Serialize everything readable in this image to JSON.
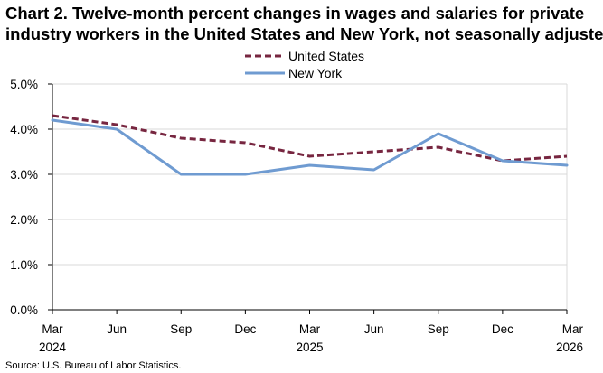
{
  "chart_data": {
    "type": "line",
    "title_lines": [
      "Chart 2. Twelve-month percent changes in wages and salaries for private",
      "industry workers in the United States and New York, not seasonally adjusted"
    ],
    "x": [
      "Mar 2024",
      "Jun 2024",
      "Sep 2024",
      "Dec 2024",
      "Mar 2025",
      "Jun 2025",
      "Sep 2025",
      "Dec 2025",
      "Mar 2026"
    ],
    "x_tick_labels": [
      {
        "month": "Mar",
        "year": "2024"
      },
      {
        "month": "Jun",
        "year": ""
      },
      {
        "month": "Sep",
        "year": ""
      },
      {
        "month": "Dec",
        "year": ""
      },
      {
        "month": "Mar",
        "year": "2025"
      },
      {
        "month": "Jun",
        "year": ""
      },
      {
        "month": "Sep",
        "year": ""
      },
      {
        "month": "Dec",
        "year": ""
      },
      {
        "month": "Mar",
        "year": "2026"
      }
    ],
    "y_ticks": [
      0,
      1,
      2,
      3,
      4,
      5
    ],
    "y_tick_labels": [
      "0.0%",
      "1.0%",
      "2.0%",
      "3.0%",
      "4.0%",
      "5.0%"
    ],
    "ylim": [
      0,
      5
    ],
    "grid": "horizontal",
    "legend_position": "top-center",
    "series": [
      {
        "name": "United States",
        "color": "#772640",
        "style": "dashed",
        "values": [
          4.3,
          4.1,
          3.8,
          3.7,
          3.4,
          3.5,
          3.6,
          3.3,
          3.4
        ]
      },
      {
        "name": "New York",
        "color": "#6f9bd1",
        "style": "solid",
        "values": [
          4.2,
          4.0,
          3.0,
          3.0,
          3.2,
          3.1,
          3.9,
          3.3,
          3.2
        ]
      }
    ],
    "source": "Source: U.S. Bureau of Labor Statistics."
  }
}
